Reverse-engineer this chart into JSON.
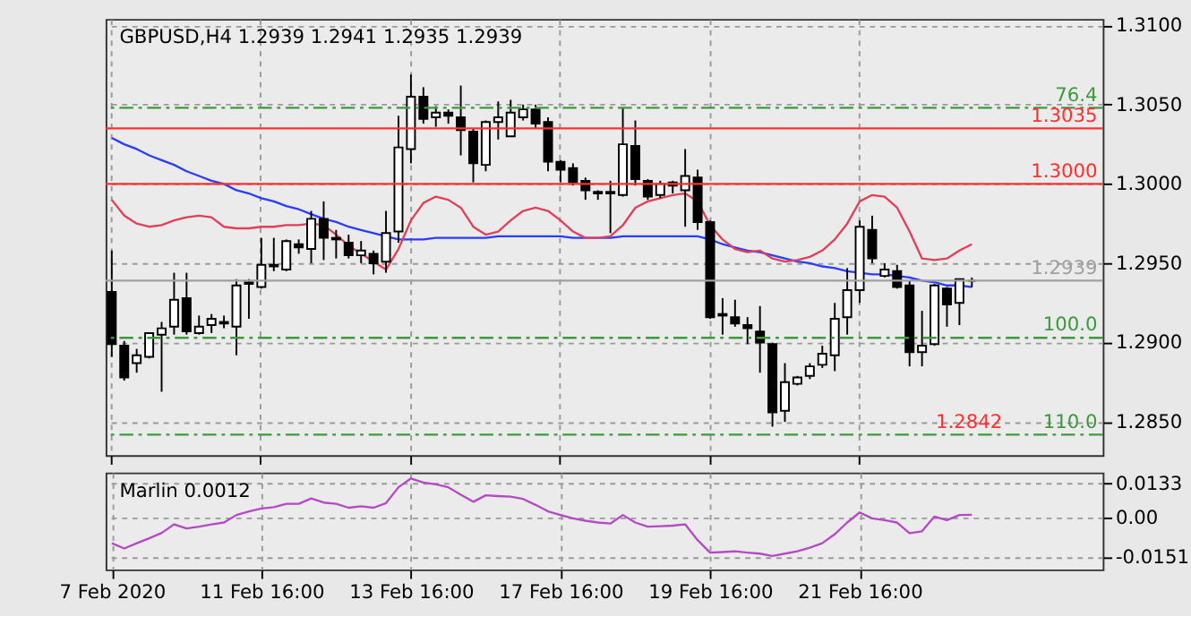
{
  "chart_data": [
    {
      "type": "candlestick",
      "title": "GBPUSD,H4  1.2939 1.2941 1.2935 1.2939",
      "categories": [
        null,
        null,
        null,
        null,
        null,
        null,
        null,
        null,
        null,
        null,
        null,
        null,
        null,
        null,
        null,
        null,
        null,
        null,
        null,
        null,
        null,
        null,
        null,
        null,
        null,
        null,
        null,
        null,
        null,
        null,
        null,
        null,
        null,
        null,
        null,
        null,
        null,
        null,
        null,
        null,
        null,
        null,
        null,
        null,
        null,
        null,
        null,
        null,
        null,
        null,
        null,
        null,
        null,
        null,
        null,
        null,
        null,
        null,
        null,
        null,
        null,
        null,
        null,
        null,
        null,
        null,
        null,
        null,
        null,
        null,
        null,
        null,
        null,
        null,
        null,
        null,
        null,
        null,
        null,
        null
      ],
      "ohlc": [
        [
          1.2932,
          1.2958,
          1.2891,
          1.2899
        ],
        [
          1.2898,
          1.2901,
          1.2876,
          1.2878
        ],
        [
          1.2887,
          1.2896,
          1.2881,
          1.2892
        ],
        [
          1.2891,
          1.2906,
          1.289,
          1.2906
        ],
        [
          1.2905,
          1.2913,
          1.2869,
          1.2909
        ],
        [
          1.291,
          1.2944,
          1.2905,
          1.2927
        ],
        [
          1.2928,
          1.2944,
          1.2905,
          1.2907
        ],
        [
          1.2906,
          1.2917,
          1.2905,
          1.291
        ],
        [
          1.2911,
          1.2918,
          1.2906,
          1.2915
        ],
        [
          1.2913,
          1.2917,
          1.2909,
          1.2912
        ],
        [
          1.291,
          1.294,
          1.2892,
          1.2936
        ],
        [
          1.2938,
          1.294,
          1.2915,
          1.2937
        ],
        [
          1.2935,
          1.2966,
          1.2934,
          1.2949
        ],
        [
          1.2948,
          1.2966,
          1.2945,
          1.2949
        ],
        [
          1.2946,
          1.2965,
          1.2945,
          1.2964
        ],
        [
          1.2962,
          1.2965,
          1.2956,
          1.296
        ],
        [
          1.2959,
          1.2983,
          1.295,
          1.2978
        ],
        [
          1.2978,
          1.2989,
          1.2952,
          1.2966
        ],
        [
          1.2966,
          1.2971,
          1.2953,
          1.2965
        ],
        [
          1.2963,
          1.2968,
          1.2953,
          1.2955
        ],
        [
          1.2955,
          1.2964,
          1.295,
          1.2958
        ],
        [
          1.2956,
          1.2958,
          1.2943,
          1.295
        ],
        [
          1.2951,
          1.2983,
          1.2944,
          1.2969
        ],
        [
          1.297,
          1.3043,
          1.2963,
          1.3023
        ],
        [
          1.3022,
          1.3069,
          1.3013,
          1.3055
        ],
        [
          1.3055,
          1.3061,
          1.3038,
          1.3041
        ],
        [
          1.3042,
          1.3049,
          1.3036,
          1.3045
        ],
        [
          1.3045,
          1.3047,
          1.3038,
          1.3043
        ],
        [
          1.3042,
          1.3062,
          1.3018,
          1.3034
        ],
        [
          1.3033,
          1.3035,
          1.3001,
          1.3013
        ],
        [
          1.3012,
          1.304,
          1.3008,
          1.3039
        ],
        [
          1.3039,
          1.3052,
          1.3028,
          1.3042
        ],
        [
          1.303,
          1.3053,
          1.303,
          1.3045
        ],
        [
          1.3042,
          1.305,
          1.304,
          1.3047
        ],
        [
          1.3047,
          1.305,
          1.3035,
          1.3038
        ],
        [
          1.3039,
          1.3042,
          1.3008,
          1.3014
        ],
        [
          1.3014,
          1.3015,
          1.3001,
          1.3009
        ],
        [
          1.301,
          1.3013,
          1.2999,
          1.3001
        ],
        [
          1.3002,
          1.3004,
          1.299,
          1.2996
        ],
        [
          1.2995,
          1.2996,
          1.299,
          1.2994
        ],
        [
          1.2995,
          1.3002,
          1.2969,
          1.2994
        ],
        [
          1.2993,
          1.3048,
          1.2992,
          1.3025
        ],
        [
          1.3024,
          1.304,
          1.2999,
          1.3003
        ],
        [
          1.3002,
          1.3003,
          1.299,
          1.2992
        ],
        [
          1.2993,
          1.3002,
          1.2991,
          1.3
        ],
        [
          1.3001,
          1.3002,
          1.2994,
          1.2999
        ],
        [
          1.2996,
          1.3022,
          1.2973,
          1.3005
        ],
        [
          1.3004,
          1.3009,
          1.2971,
          1.2976
        ],
        [
          1.2976,
          1.2977,
          1.2915,
          1.2916
        ],
        [
          1.2918,
          1.2928,
          1.2905,
          1.2917
        ],
        [
          1.2916,
          1.2927,
          1.291,
          1.2912
        ],
        [
          1.2911,
          1.2916,
          1.2899,
          1.2909
        ],
        [
          1.2907,
          1.2923,
          1.2881,
          1.29
        ],
        [
          1.2899,
          1.29,
          1.2847,
          1.2856
        ],
        [
          1.2857,
          1.2887,
          1.285,
          1.2875
        ],
        [
          1.2874,
          1.2879,
          1.2873,
          1.2878
        ],
        [
          1.2879,
          1.2887,
          1.2877,
          1.2885
        ],
        [
          1.2886,
          1.2898,
          1.2884,
          1.2893
        ],
        [
          1.2892,
          1.2925,
          1.2882,
          1.2915
        ],
        [
          1.2916,
          1.2947,
          1.2905,
          1.2933
        ],
        [
          1.2933,
          1.2977,
          1.2925,
          1.2973
        ],
        [
          1.2971,
          1.298,
          1.295,
          1.2953
        ],
        [
          1.2942,
          1.295,
          1.2941,
          1.2946
        ],
        [
          1.2945,
          1.2949,
          1.2934,
          1.2935
        ],
        [
          1.2936,
          1.2939,
          1.2885,
          1.2894
        ],
        [
          1.2894,
          1.292,
          1.2885,
          1.2898
        ],
        [
          1.2899,
          1.2937,
          1.2898,
          1.2936
        ],
        [
          1.2934,
          1.2935,
          1.291,
          1.2924
        ],
        [
          1.2925,
          1.294,
          1.2911,
          1.294
        ],
        [
          1.2939,
          1.2941,
          1.2935,
          1.2939
        ],
        null,
        null,
        null,
        null,
        null,
        null,
        null,
        null,
        null,
        null
      ],
      "series": [
        {
          "type": "line",
          "color": "#2a3cff",
          "values": [
            1.3029,
            1.3025,
            1.3022,
            1.3018,
            1.3015,
            1.3012,
            1.3008,
            1.3005,
            1.3002,
            1.3,
            1.2996,
            1.2994,
            1.2991,
            1.2989,
            1.2986,
            1.2984,
            1.2981,
            1.2978,
            1.2976,
            1.2973,
            1.2971,
            1.2969,
            1.2967,
            1.2965,
            1.2965,
            1.2965,
            1.2966,
            1.2966,
            1.2966,
            1.2966,
            1.2966,
            1.2967,
            1.2967,
            1.2967,
            1.2967,
            1.2967,
            1.2967,
            1.2966,
            1.2966,
            1.2966,
            1.2966,
            1.2967,
            1.2967,
            1.2967,
            1.2967,
            1.2967,
            1.2967,
            1.2967,
            1.2965,
            1.2962,
            1.296,
            1.2958,
            1.2957,
            1.2955,
            1.2953,
            1.2951,
            1.295,
            1.2948,
            1.2947,
            1.2945,
            1.2944,
            1.2943,
            1.2943,
            1.2942,
            1.2941,
            1.2939,
            1.2938,
            1.2936,
            1.2936,
            1.2935,
            null,
            null,
            null,
            null,
            null,
            null,
            null,
            null,
            null,
            null
          ]
        },
        {
          "type": "line",
          "color": "#e0405a",
          "values": [
            1.299,
            1.298,
            1.2975,
            1.2973,
            1.2974,
            1.2977,
            1.2979,
            1.298,
            1.2979,
            1.2973,
            1.2972,
            1.2972,
            1.2973,
            1.2973,
            1.2974,
            1.2974,
            1.2975,
            1.2974,
            1.2968,
            1.2961,
            1.2956,
            1.2951,
            1.2946,
            1.2959,
            1.2977,
            1.2988,
            1.2992,
            1.299,
            1.2985,
            1.2973,
            1.2968,
            1.297,
            1.2977,
            1.2983,
            1.2985,
            1.2983,
            1.2977,
            1.297,
            1.2966,
            1.2966,
            1.2967,
            1.2974,
            1.2985,
            1.2989,
            1.2991,
            1.2993,
            1.2994,
            1.2989,
            1.2974,
            1.2965,
            1.2959,
            1.2957,
            1.2958,
            1.2953,
            1.2951,
            1.2952,
            1.2954,
            1.2958,
            1.2965,
            1.2975,
            1.2989,
            1.2993,
            1.2992,
            1.2985,
            1.297,
            1.2953,
            1.2952,
            1.2953,
            1.2958,
            1.2962,
            null,
            null,
            null,
            null,
            null,
            null,
            null,
            null,
            null,
            null
          ]
        }
      ],
      "ylim": [
        1.2829,
        1.3104
      ],
      "yticks": [
        {
          "value": 1.285,
          "label": "1.2850"
        },
        {
          "value": 1.29,
          "label": "1.2900"
        },
        {
          "value": 1.295,
          "label": "1.2950"
        },
        {
          "value": 1.3,
          "label": "1.3000"
        },
        {
          "value": 1.305,
          "label": "1.3050"
        },
        {
          "value": 1.31,
          "label": "1.3100"
        }
      ],
      "ref_lines": [
        {
          "axis": "y",
          "value": 1.3048,
          "color": "#3c9a3c",
          "line_style": "dashed"
        },
        {
          "axis": "y",
          "value": 1.3035,
          "label": "1.3035",
          "color": "#ff3030",
          "line_style": "solid"
        },
        {
          "axis": "y",
          "value": 1.3,
          "label": "1.3000",
          "color": "#ff3030",
          "line_style": "solid"
        },
        {
          "axis": "y",
          "value": 1.2939,
          "label": "1.2939",
          "color": "#a0a0a0",
          "line_style": "solid"
        },
        {
          "axis": "y",
          "value": 1.2903,
          "color": "#3c9a3c",
          "line_style": "dashed"
        },
        {
          "axis": "y",
          "value": 1.2842,
          "color": "#3c9a3c",
          "line_style": "dashed"
        }
      ],
      "annotations": [
        {
          "text": "76.4",
          "y": 1.3048
        },
        {
          "text": "100.0",
          "y": 1.2903
        },
        {
          "text": "110.0",
          "y": 1.2842
        },
        {
          "text": "1.2842",
          "y": 1.2842
        }
      ],
      "grid": true,
      "tick_labels": "y"
    },
    {
      "type": "line",
      "title": "Marlin 0.0012",
      "categories": [
        "7 Feb 2020",
        null,
        null,
        null,
        null,
        null,
        null,
        null,
        null,
        null,
        null,
        null,
        "11 Feb 16:00",
        null,
        null,
        null,
        null,
        null,
        null,
        null,
        null,
        null,
        null,
        null,
        "13 Feb 16:00",
        null,
        null,
        null,
        null,
        null,
        null,
        null,
        null,
        null,
        null,
        null,
        "17 Feb 16:00",
        null,
        null,
        null,
        null,
        null,
        null,
        null,
        null,
        null,
        null,
        null,
        "19 Feb 16:00",
        null,
        null,
        null,
        null,
        null,
        null,
        null,
        null,
        null,
        null,
        null,
        "21 Feb 16:00",
        null,
        null,
        null,
        null,
        null,
        null,
        null,
        null,
        null,
        null,
        null,
        null,
        null,
        null,
        null,
        null,
        null,
        null,
        null
      ],
      "series": [
        {
          "color": "#b44ac4",
          "values": [
            -0.0098,
            -0.0118,
            -0.0098,
            -0.0079,
            -0.0058,
            -0.0025,
            -0.0041,
            -0.0034,
            -0.0025,
            -0.0018,
            0.0011,
            0.0025,
            0.0036,
            0.0041,
            0.0054,
            0.0054,
            0.0075,
            0.0059,
            0.0054,
            0.0039,
            0.0045,
            0.0039,
            0.0057,
            0.0118,
            0.0152,
            0.0136,
            0.0129,
            0.0118,
            0.0089,
            0.0062,
            0.0087,
            0.0084,
            0.0082,
            0.0073,
            0.005,
            0.0025,
            0.0011,
            -0.0002,
            -0.0011,
            -0.0018,
            -0.0022,
            0.0011,
            -0.0018,
            -0.0034,
            -0.0032,
            -0.003,
            -0.0025,
            -0.0086,
            -0.0134,
            -0.0132,
            -0.0129,
            -0.0134,
            -0.0138,
            -0.0147,
            -0.0138,
            -0.0129,
            -0.0115,
            -0.0098,
            -0.0063,
            -0.0018,
            0.0021,
            -0.0002,
            -0.0009,
            -0.0018,
            -0.0059,
            -0.0052,
            0.0005,
            -0.0009,
            0.0011,
            0.0012,
            null,
            null,
            null,
            null,
            null,
            null,
            null,
            null,
            null,
            null
          ]
        }
      ],
      "ylim": [
        -0.0199,
        0.0175
      ],
      "yticks": [
        0.0133,
        {
          "value": 0,
          "label": "0.00"
        },
        -0.0151
      ],
      "grid": true
    }
  ]
}
